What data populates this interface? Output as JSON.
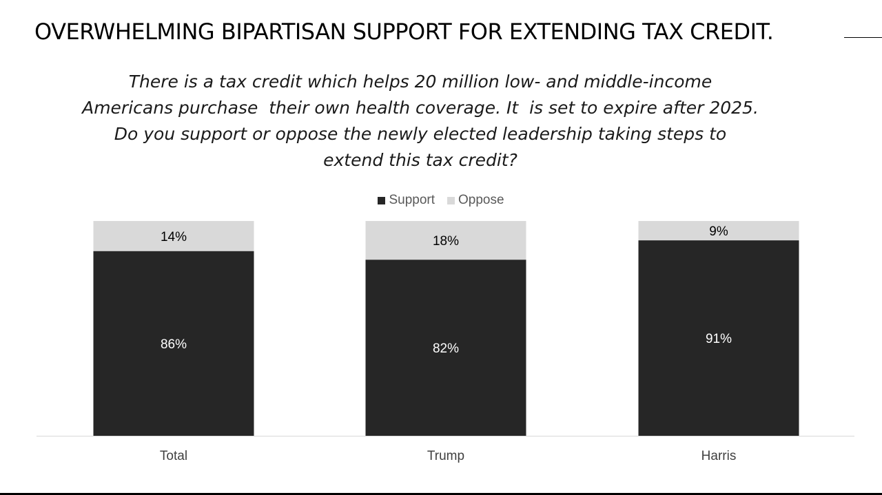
{
  "title": "OVERWHELMING BIPARTISAN SUPPORT FOR EXTENDING TAX CREDIT.",
  "question_lines": [
    "There is a tax credit which helps 20 million low- and middle-income",
    "Americans purchase  their own health coverage. It  is set to expire after 2025.",
    "Do you support or oppose the newly elected leadership taking steps to",
    "extend this tax credit?"
  ],
  "colors": {
    "support": "#262626",
    "oppose": "#d9d9d9",
    "support_label": "#ffffff",
    "oppose_label": "#000000",
    "axis": "#d9d9d9",
    "category_label": "#404040"
  },
  "chart_data": {
    "type": "bar",
    "stacked": true,
    "categories": [
      "Total",
      "Trump",
      "Harris"
    ],
    "series": [
      {
        "name": "Support",
        "values": [
          86,
          82,
          91
        ],
        "labels": [
          "86%",
          "82%",
          "91%"
        ]
      },
      {
        "name": "Oppose",
        "values": [
          14,
          18,
          9
        ],
        "labels": [
          "14%",
          "18%",
          "9%"
        ]
      }
    ],
    "ylim": [
      0,
      100
    ],
    "unit": "%",
    "grid": false,
    "legend_position": "top-center"
  }
}
